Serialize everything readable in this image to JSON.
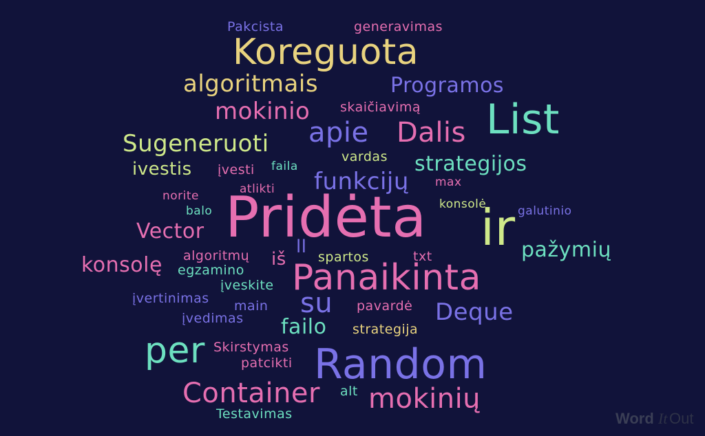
{
  "words": {
    "pakcista": "Pakcista",
    "generavimas": "generavimas",
    "koreguota": "Koreguota",
    "algoritmais": "algoritmais",
    "programos": "Programos",
    "mokinio": "mokinio",
    "skaiciavima": "skaičiavimą",
    "list": "List",
    "apie": "apie",
    "dalis": "Dalis",
    "sugeneruoti": "Sugeneruoti",
    "ivestis": "ivestis",
    "ivesti": "įvesti",
    "faila": "faila",
    "vardas": "vardas",
    "strategijos": "strategijos",
    "funkciju": "funkcijų",
    "atlikti": "atlikti",
    "max": "max",
    "norite": "norite",
    "konsole": "konsolė",
    "balo": "balo",
    "galutinio": "galutinio",
    "prideta": "Pridėta",
    "ir": "ir",
    "vector": "Vector",
    "ll": "ll",
    "pazymiu": "pažymių",
    "algoritmu": "algoritmų",
    "konsole2": "konsolę",
    "is": "iš",
    "spartos": "spartos",
    "txt": "txt",
    "egzamino": "egzamino",
    "iveskite": "įveskite",
    "panaikinta": "Panaikinta",
    "ivertinimas": "įvertinimas",
    "main": "main",
    "su": "su",
    "pavarde": "pavardė",
    "deque": "Deque",
    "ivedimas": "įvedimas",
    "failo": "failo",
    "strategija": "strategija",
    "per": "per",
    "skirstymas": "Skirstymas",
    "random": "Random",
    "patcikti": "patcikti",
    "container": "Container",
    "alt": "alt",
    "mokiniu": "mokinių",
    "testavimas": "Testavimas"
  },
  "logo": {
    "word": "Word",
    "it": "It",
    "out": "Out"
  },
  "colors": {
    "background": "#11133a",
    "yellow": "#e9d37f",
    "lime": "#cfe98a",
    "pink": "#e66fb1",
    "blue": "#7a72e6",
    "teal": "#6de0c0"
  }
}
